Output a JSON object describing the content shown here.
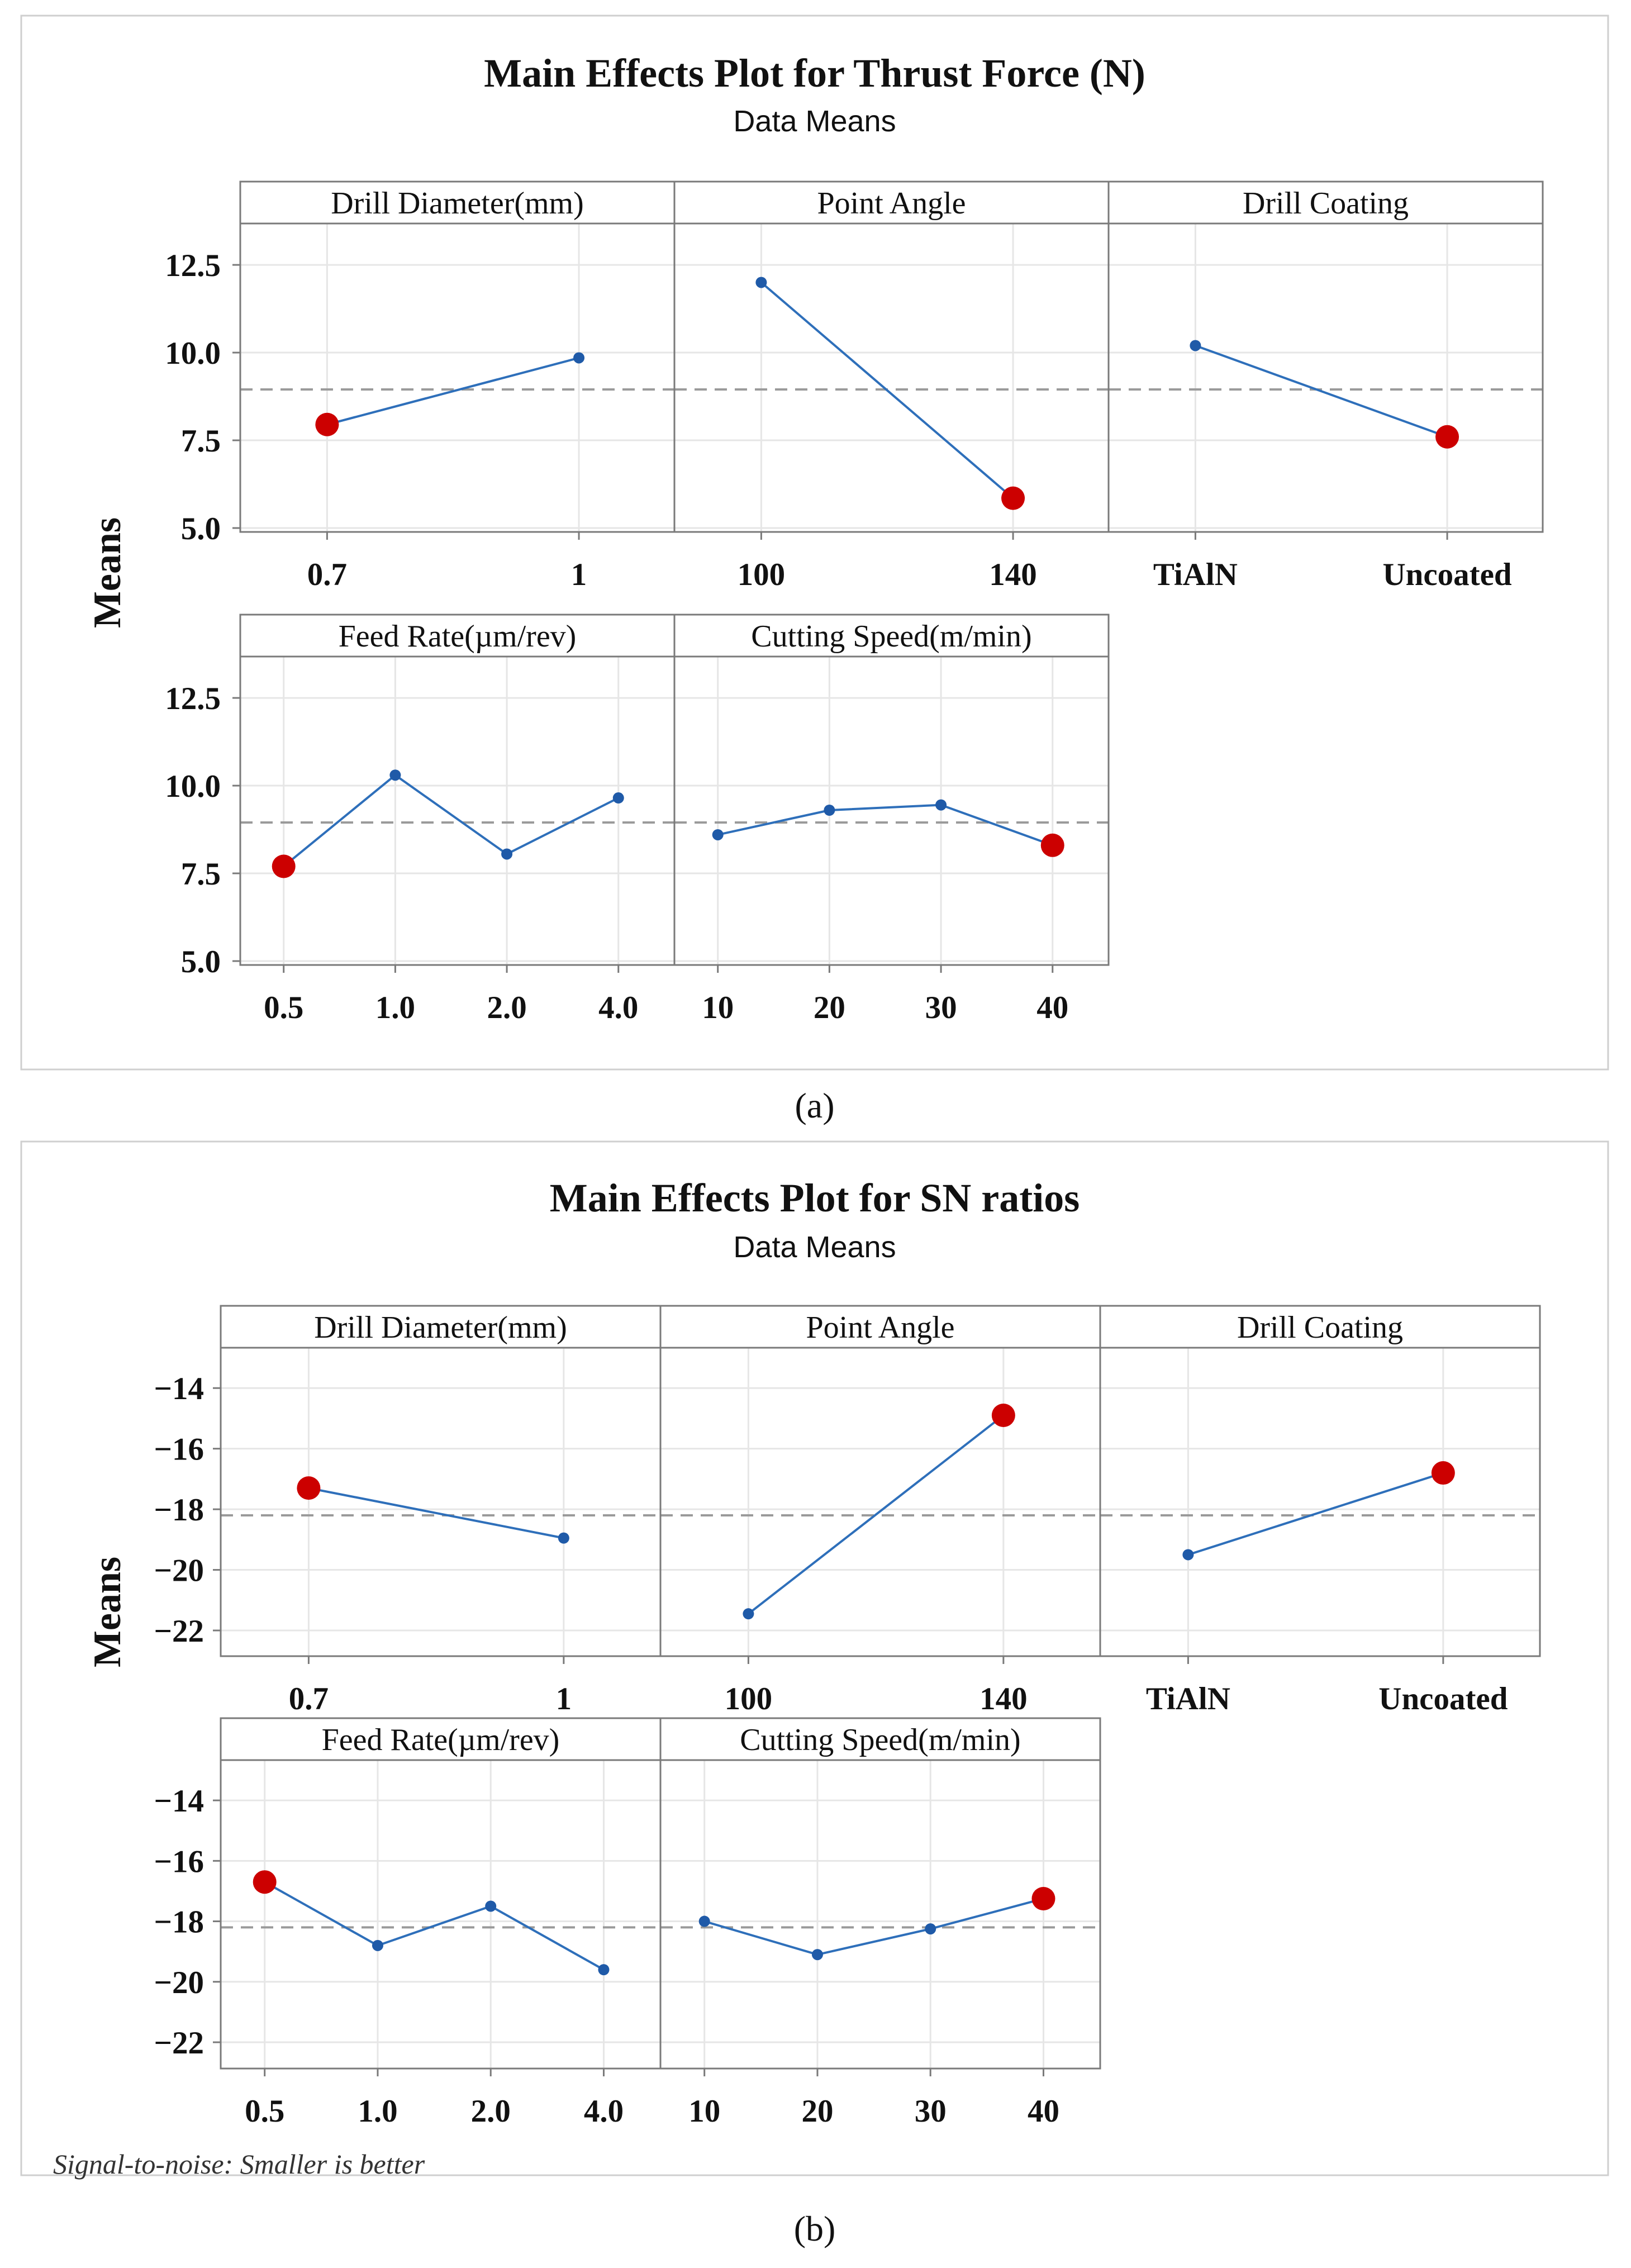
{
  "colors": {
    "line": "#2e6fba",
    "point": "#1f5aa8",
    "highlight": "#cc0000",
    "mean_line": "#9a9a9a",
    "grid": "#e6e6e6",
    "frame": "#7a7a7a"
  },
  "chart_data": [
    {
      "type": "line",
      "title": "Main Effects Plot for Thrust Force (N)",
      "subtitle": "Data Means",
      "ylabel": "Means",
      "ylim": [
        5.0,
        13.6
      ],
      "yticks": [
        "5.0",
        "7.5",
        "10.0",
        "12.5"
      ],
      "ytick_values": [
        5.0,
        7.5,
        10.0,
        12.5
      ],
      "overall_mean": 8.95,
      "caption": "(a)",
      "footnote": "",
      "panels": [
        {
          "name": "Drill Diameter(mm)",
          "categories": [
            "0.7",
            "1"
          ],
          "values": [
            7.95,
            9.85
          ],
          "highlight": [
            0
          ]
        },
        {
          "name": "Point Angle",
          "categories": [
            "100",
            "140"
          ],
          "values": [
            12.0,
            5.85
          ],
          "highlight": [
            1
          ]
        },
        {
          "name": "Drill Coating",
          "categories": [
            "TiAlN",
            "Uncoated"
          ],
          "values": [
            10.2,
            7.6
          ],
          "highlight": [
            1
          ]
        },
        {
          "name": "Feed Rate(µm/rev)",
          "categories": [
            "0.5",
            "1.0",
            "2.0",
            "4.0"
          ],
          "values": [
            7.7,
            10.3,
            8.05,
            9.65
          ],
          "highlight": [
            0
          ]
        },
        {
          "name": "Cutting Speed(m/min)",
          "categories": [
            "10",
            "20",
            "30",
            "40"
          ],
          "values": [
            8.6,
            9.3,
            9.45,
            8.3
          ],
          "highlight": [
            3
          ]
        }
      ]
    },
    {
      "type": "line",
      "title": "Main Effects Plot for SN ratios",
      "subtitle": "Data Means",
      "ylabel": "Means",
      "ylim": [
        -22.0,
        -13.0
      ],
      "yticks": [
        "−22",
        "−20",
        "−18",
        "−16",
        "−14"
      ],
      "ytick_values": [
        -22,
        -20,
        -18,
        -16,
        -14
      ],
      "overall_mean": -18.2,
      "caption": "(b)",
      "footnote": "Signal-to-noise: Smaller is better",
      "panels": [
        {
          "name": "Drill Diameter(mm)",
          "categories": [
            "0.7",
            "1"
          ],
          "values": [
            -17.3,
            -18.95
          ],
          "highlight": [
            0
          ]
        },
        {
          "name": "Point Angle",
          "categories": [
            "100",
            "140"
          ],
          "values": [
            -21.45,
            -14.9
          ],
          "highlight": [
            1
          ]
        },
        {
          "name": "Drill Coating",
          "categories": [
            "TiAlN",
            "Uncoated"
          ],
          "values": [
            -19.5,
            -16.8
          ],
          "highlight": [
            1
          ]
        },
        {
          "name": "Feed Rate(µm/rev)",
          "categories": [
            "0.5",
            "1.0",
            "2.0",
            "4.0"
          ],
          "values": [
            -16.7,
            -18.8,
            -17.5,
            -19.6
          ],
          "highlight": [
            0
          ]
        },
        {
          "name": "Cutting Speed(m/min)",
          "categories": [
            "10",
            "20",
            "30",
            "40"
          ],
          "values": [
            -18.0,
            -19.1,
            -18.25,
            -17.25
          ],
          "highlight": [
            3
          ]
        }
      ]
    }
  ]
}
